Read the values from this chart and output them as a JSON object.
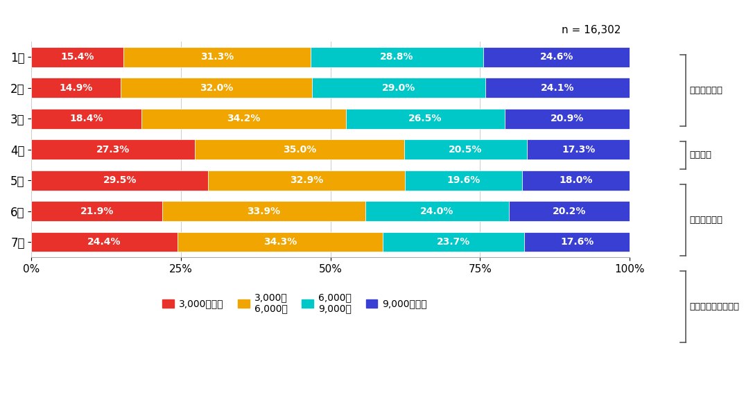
{
  "months": [
    "1月",
    "2月",
    "3月",
    "4月",
    "5月",
    "6月",
    "7月"
  ],
  "data": {
    "red": [
      15.4,
      14.9,
      18.4,
      27.3,
      29.5,
      21.9,
      24.4
    ],
    "orange": [
      31.3,
      32.0,
      34.2,
      35.0,
      32.9,
      33.9,
      34.3
    ],
    "cyan": [
      28.8,
      29.0,
      26.5,
      20.5,
      19.6,
      24.0,
      23.7
    ],
    "blue": [
      24.6,
      24.1,
      20.9,
      17.3,
      18.0,
      20.2,
      17.6
    ]
  },
  "colors": {
    "red": "#e8312a",
    "orange": "#f0a500",
    "cyan": "#00c8c8",
    "blue": "#3a3fd4"
  },
  "legend_labels": [
    "3,000歩未満",
    "3,000～\n6,000歩",
    "6,000～\n9,000歩",
    "9,000歩以上"
  ],
  "n_label": "n = 16,302",
  "annotation_info": [
    {
      "text": "コロナ影響前",
      "month_indices": [
        0,
        1
      ]
    },
    {
      "text": "自粛要請",
      "month_indices": [
        2
      ]
    },
    {
      "text": "緊急事態宣言",
      "month_indices": [
        3,
        4
      ]
    },
    {
      "text": "緊急事態宣言解除後",
      "month_indices": [
        5,
        6
      ]
    }
  ],
  "background_color": "#ffffff",
  "bar_height": 0.65,
  "xticks": [
    0,
    25,
    50,
    75,
    100
  ],
  "xlabels": [
    "0%",
    "25%",
    "50%",
    "75%",
    "100%"
  ]
}
